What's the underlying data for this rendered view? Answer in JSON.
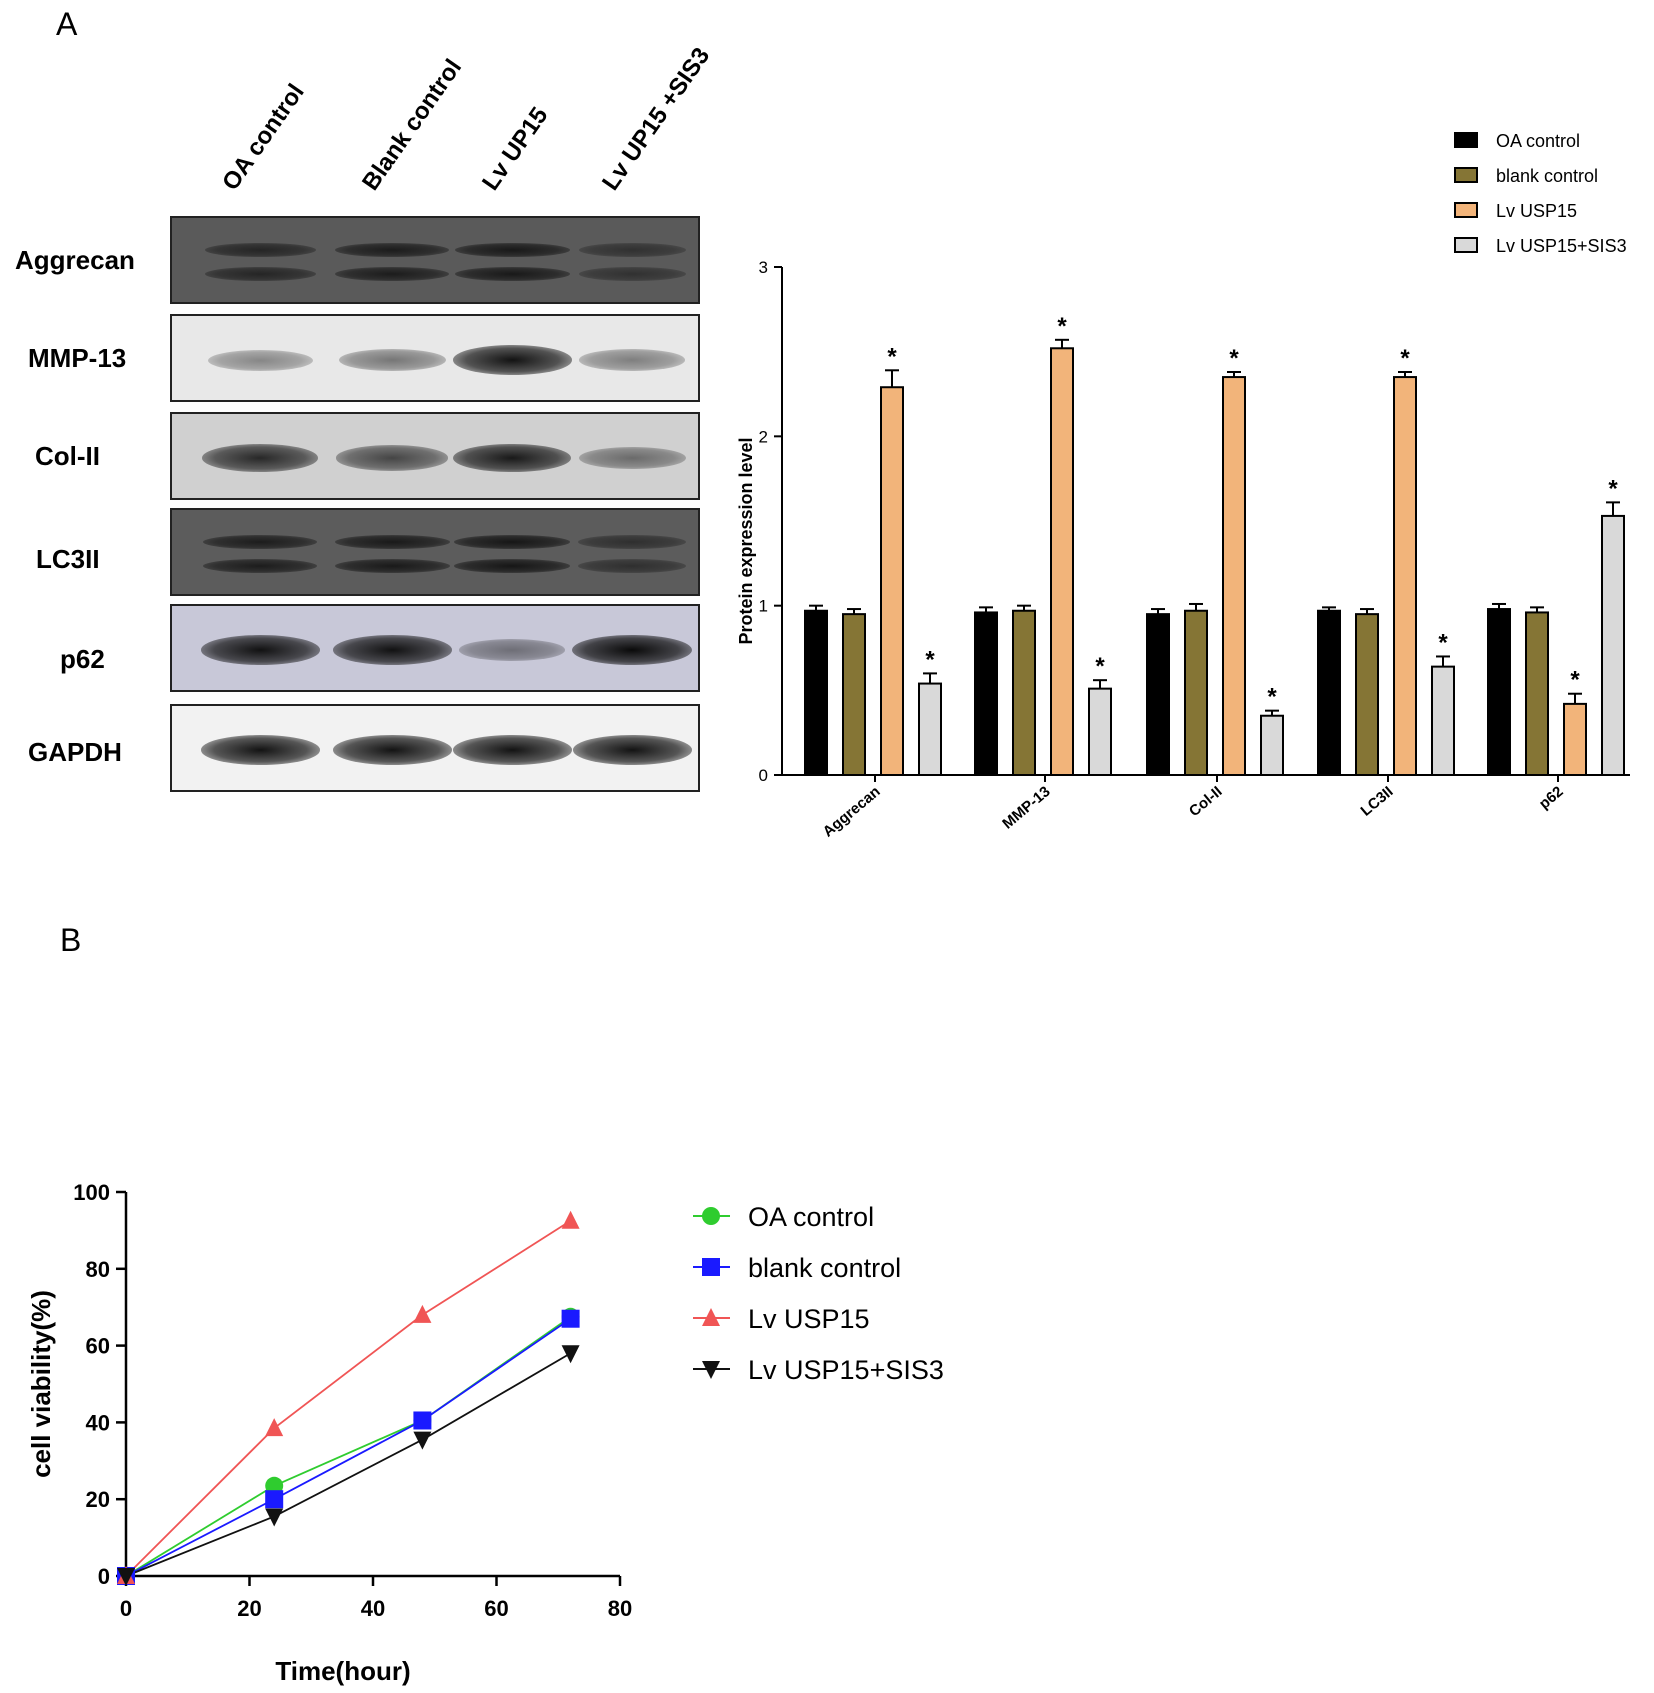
{
  "panelA": {
    "letter": "A",
    "lanes": [
      "OA control",
      "Blank control",
      "Lv UP15",
      "Lv UP15 +SIS3"
    ],
    "blots": [
      {
        "label": "Aggrecan",
        "intensity": [
          0.55,
          0.7,
          0.75,
          0.35
        ],
        "bg": "#5a5a5a",
        "double": true
      },
      {
        "label": "MMP-13",
        "intensity": [
          0.25,
          0.35,
          0.95,
          0.3
        ],
        "bg": "#e8e8e8",
        "double": false
      },
      {
        "label": "Col-II",
        "intensity": [
          0.8,
          0.6,
          0.9,
          0.35
        ],
        "bg": "#d0d0d0",
        "double": false
      },
      {
        "label": "LC3II",
        "intensity": [
          0.7,
          0.75,
          0.8,
          0.4
        ],
        "bg": "#5c5c5c",
        "double": true
      },
      {
        "label": "p62",
        "intensity": [
          0.95,
          0.95,
          0.3,
          1.0
        ],
        "bg": "#c8c8d8",
        "double": false
      },
      {
        "label": "GAPDH",
        "intensity": [
          0.95,
          0.95,
          0.95,
          0.95
        ],
        "bg": "#f2f2f2",
        "double": false
      }
    ]
  },
  "panelB": {
    "letter": "B"
  },
  "chart_data": [
    {
      "type": "bar",
      "ylabel": "Protein expression level",
      "ylim": [
        0,
        3
      ],
      "yticks": [
        "0",
        "1",
        "2",
        "3"
      ],
      "categories": [
        "Aggrecan",
        "MMP-13",
        "Col-II",
        "LC3II",
        "p62"
      ],
      "legend_placement": "top-right",
      "series": [
        {
          "name": "OA control",
          "color": "#000000",
          "values": [
            0.97,
            0.96,
            0.95,
            0.97,
            0.98
          ],
          "errors": [
            0.03,
            0.03,
            0.03,
            0.02,
            0.03
          ],
          "sig": [
            false,
            false,
            false,
            false,
            false
          ]
        },
        {
          "name": "blank control",
          "color": "#857535",
          "values": [
            0.95,
            0.97,
            0.97,
            0.95,
            0.96
          ],
          "errors": [
            0.03,
            0.03,
            0.04,
            0.03,
            0.03
          ],
          "sig": [
            false,
            false,
            false,
            false,
            false
          ]
        },
        {
          "name": "Lv USP15",
          "color": "#f2b47a",
          "values": [
            2.29,
            2.52,
            2.35,
            2.35,
            0.42
          ],
          "errors": [
            0.1,
            0.05,
            0.03,
            0.03,
            0.06
          ],
          "sig": [
            true,
            true,
            true,
            true,
            true
          ]
        },
        {
          "name": "Lv USP15+SIS3",
          "color": "#d9d9d9",
          "values": [
            0.54,
            0.51,
            0.35,
            0.64,
            1.53
          ],
          "errors": [
            0.06,
            0.05,
            0.03,
            0.06,
            0.08
          ],
          "sig": [
            true,
            true,
            true,
            true,
            true
          ]
        }
      ],
      "sig_marker": "*"
    },
    {
      "type": "line",
      "xlabel": "Time(hour)",
      "ylabel": "cell viability(%)",
      "xlim": [
        0,
        80
      ],
      "ylim": [
        0,
        100
      ],
      "xticks": [
        "0",
        "20",
        "40",
        "60",
        "80"
      ],
      "yticks": [
        "0",
        "20",
        "40",
        "60",
        "80",
        "100"
      ],
      "x": [
        0,
        24,
        48,
        72
      ],
      "legend_placement": "right",
      "series": [
        {
          "name": "OA control",
          "color": "#2fcc2f",
          "marker": "circle",
          "values": [
            0,
            23.5,
            40.5,
            67.5
          ]
        },
        {
          "name": "blank control",
          "color": "#1a1aff",
          "marker": "square",
          "values": [
            0,
            20,
            40.5,
            67
          ]
        },
        {
          "name": "Lv USP15",
          "color": "#f05555",
          "marker": "triangle-up",
          "values": [
            0,
            38.5,
            68,
            92.5
          ]
        },
        {
          "name": "Lv USP15+SIS3",
          "color": "#111111",
          "marker": "triangle-down",
          "values": [
            0,
            15.5,
            35.5,
            58
          ]
        }
      ]
    }
  ]
}
